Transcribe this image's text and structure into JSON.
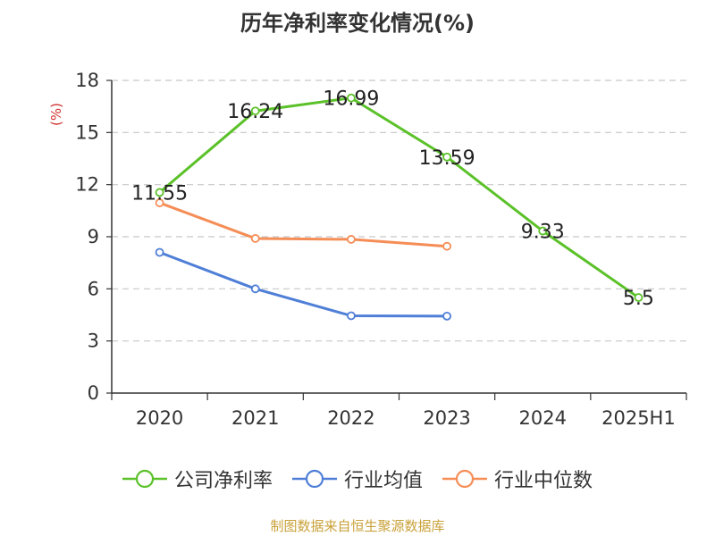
{
  "chart_data": {
    "type": "line",
    "title": "历年净利率变化情况(%)",
    "ylabel": "(%)",
    "xlabel": "",
    "ylim": [
      0,
      18
    ],
    "yticks": [
      0,
      3,
      6,
      9,
      12,
      15,
      18
    ],
    "categories": [
      "2020",
      "2021",
      "2022",
      "2023",
      "2024",
      "2025H1"
    ],
    "grid": true,
    "legend_position": "bottom",
    "series": [
      {
        "name": "公司净利率",
        "color": "#5bc129",
        "values": [
          11.55,
          16.24,
          16.99,
          13.59,
          9.33,
          5.5
        ],
        "labels": [
          "11.55",
          "16.24",
          "16.99",
          "13.59",
          "9.33",
          "5.5"
        ]
      },
      {
        "name": "行业均值",
        "color": "#4f7fd7",
        "values": [
          8.1,
          6.0,
          4.45,
          4.43,
          null,
          null
        ]
      },
      {
        "name": "行业中位数",
        "color": "#f58d56",
        "values": [
          10.95,
          8.9,
          8.85,
          8.45,
          null,
          null
        ]
      }
    ]
  },
  "footer": {
    "source": "制图数据来自恒生聚源数据库"
  }
}
